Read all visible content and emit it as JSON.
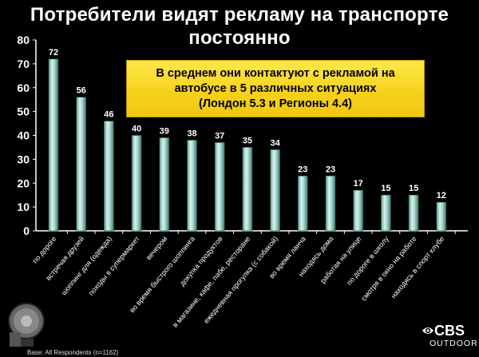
{
  "title": "Потребители видят рекламу на транспорте постоянно",
  "title_lines": [
    "Потребители видят рекламу на транспорте",
    "постоянно"
  ],
  "callout": {
    "lines": [
      "В среднем они контактуют с рекламой на",
      "автобусе в 5 различных ситуациях",
      "(Лондон 5.3 и Регионы 4.4)"
    ],
    "background_color": "#f7d21c"
  },
  "footnote": "Base: All Respondents (n=1162)",
  "brand": {
    "name": "CBS",
    "sub": "OUTDOOR",
    "icon": "cbs-eye-logo"
  },
  "colors": {
    "background": "#000000",
    "bar": "#a8d8d0",
    "text": "#ffffff"
  },
  "chart_data": {
    "type": "bar",
    "title": "Потребители видят рекламу на транспорте постоянно",
    "xlabel": "",
    "ylabel": "",
    "ylim": [
      0,
      80
    ],
    "yticks": [
      0,
      10,
      20,
      30,
      40,
      50,
      60,
      70,
      80
    ],
    "grid": false,
    "categories": [
      "по дороге",
      "встречая друзей",
      "шоппинг для (одежда)",
      "походы в супермаркет",
      "вечером",
      "во время быстрого шоппинга",
      "докупка продуктов",
      "в магазине, кафе, пабе, ресторане",
      "ежедневная прогулка (с собакой)",
      "во время ланча",
      "находясь дома",
      "работая на улице",
      "по дороге в школу",
      "смотря в окно на работе",
      "находясь в спорт клубе"
    ],
    "values": [
      72,
      56,
      46,
      40,
      39,
      38,
      37,
      35,
      34,
      23,
      23,
      17,
      15,
      15,
      12
    ]
  }
}
